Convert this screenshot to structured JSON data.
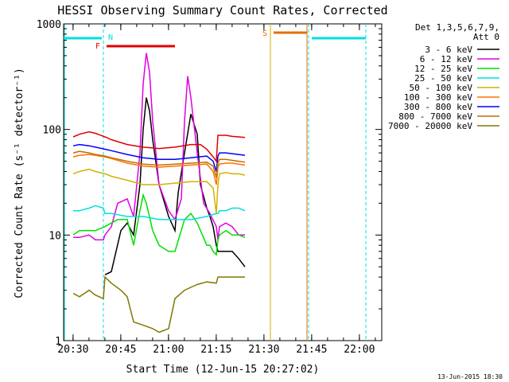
{
  "chart_data": {
    "type": "line",
    "title": "HESSI Observing Summary Count Rates, Corrected",
    "xlabel": "Start Time (12-Jun-15 20:27:02)",
    "ylabel": "Corrected Count Rate (s⁻¹ detector⁻¹)",
    "y_scale": "log",
    "ylim": [
      1,
      1000
    ],
    "xlim_minutes_since_start": [
      0,
      100
    ],
    "x_tick_labels": [
      "20:30",
      "20:45",
      "21:00",
      "21:15",
      "21:30",
      "21:45",
      "22:00"
    ],
    "x_tick_minutes": [
      2.97,
      17.97,
      32.97,
      47.97,
      62.97,
      77.97,
      92.97
    ],
    "y_tick_labels": [
      "1",
      "10",
      "100",
      "1000"
    ],
    "y_tick_values": [
      1,
      10,
      100,
      1000
    ],
    "legend_header": [
      "Det 1,3,5,6,7,9,",
      "Att 0"
    ],
    "legend_position": "right",
    "footer_date": "13-Jun-2015 18:30",
    "series": [
      {
        "name": "3 - 6 keV",
        "color": "#000000",
        "x": [
          0,
          5,
          10,
          12.5,
          13,
          15,
          18,
          20,
          22,
          24,
          25,
          26,
          27,
          28,
          30,
          33,
          35,
          36,
          38,
          40,
          42,
          43,
          45,
          46,
          47,
          48,
          48.5,
          49,
          51,
          53,
          55,
          57
        ],
        "y": [
          null,
          null,
          null,
          null,
          4.2,
          4.5,
          11,
          13,
          10,
          30,
          100,
          200,
          150,
          80,
          30,
          15,
          11,
          25,
          60,
          140,
          90,
          30,
          18,
          15,
          12,
          8,
          7,
          7,
          7,
          7,
          6,
          5
        ]
      },
      {
        "name": "6 - 12 keV",
        "color": "#e000e0",
        "x": [
          0,
          3,
          5,
          8,
          10,
          12.5,
          13,
          15,
          17,
          20,
          22,
          24,
          25,
          26,
          27,
          28,
          30,
          33,
          35,
          37,
          38,
          39,
          40,
          42,
          44,
          46,
          48,
          48.5,
          49,
          51,
          53,
          55,
          57
        ],
        "y": [
          null,
          9.5,
          9.5,
          10,
          9,
          9,
          10,
          12,
          20,
          22,
          15,
          60,
          270,
          530,
          350,
          120,
          30,
          17,
          14,
          22,
          120,
          320,
          200,
          60,
          20,
          16,
          12,
          9,
          12,
          13,
          12,
          10,
          10
        ]
      },
      {
        "name": "12 - 25 keV",
        "color": "#00e000",
        "x": [
          0,
          3,
          5,
          8,
          10,
          13,
          15,
          17,
          20,
          22,
          24,
          25,
          26,
          28,
          30,
          33,
          35,
          38,
          40,
          42,
          45,
          46,
          47,
          48,
          48.5,
          49,
          51,
          53,
          55,
          57
        ],
        "y": [
          null,
          10,
          11,
          11,
          11,
          12,
          13,
          14,
          14,
          8,
          17,
          24,
          20,
          11,
          8,
          7,
          7,
          14,
          16,
          13,
          8,
          8,
          7,
          6.5,
          9,
          10,
          11,
          10,
          10,
          9.5
        ]
      },
      {
        "name": "25 - 50 keV",
        "color": "#00e0e0",
        "x": [
          0,
          3,
          5,
          8,
          10,
          12.5,
          13,
          15,
          20,
          25,
          30,
          35,
          40,
          45,
          48,
          48.5,
          49,
          51,
          53,
          55,
          57
        ],
        "y": [
          null,
          17,
          17,
          18,
          19,
          18,
          16,
          16,
          15,
          15,
          14,
          14,
          14,
          15,
          16,
          16,
          17,
          17,
          18,
          18,
          17
        ]
      },
      {
        "name": "50 - 100 keV",
        "color": "#d4b000",
        "x": [
          0,
          3,
          5,
          8,
          10,
          13,
          15,
          20,
          25,
          30,
          35,
          40,
          45,
          47,
          48,
          48.5,
          49,
          51,
          53,
          55,
          57
        ],
        "y": [
          null,
          38,
          40,
          42,
          40,
          38,
          36,
          33,
          30,
          30,
          31,
          32,
          32,
          28,
          16,
          30,
          38,
          39,
          38,
          38,
          37
        ]
      },
      {
        "name": "100 - 300 keV",
        "color": "#ff7000",
        "x": [
          0,
          3,
          5,
          8,
          10,
          13,
          15,
          20,
          25,
          30,
          35,
          40,
          45,
          47,
          48,
          48.5,
          49,
          51,
          53,
          55,
          57
        ],
        "y": [
          null,
          55,
          57,
          58,
          57,
          55,
          53,
          48,
          45,
          44,
          45,
          46,
          47,
          40,
          30,
          44,
          47,
          48,
          48,
          47,
          46
        ]
      },
      {
        "name": "300 - 800 keV",
        "color": "#0000ff",
        "x": [
          0,
          3,
          5,
          8,
          10,
          13,
          15,
          20,
          25,
          30,
          35,
          40,
          45,
          47,
          48,
          48.5,
          49,
          51,
          53,
          55,
          57
        ],
        "y": [
          null,
          70,
          72,
          70,
          68,
          65,
          63,
          58,
          54,
          52,
          52,
          54,
          56,
          50,
          40,
          56,
          60,
          60,
          59,
          58,
          57
        ]
      },
      {
        "name": "800 - 7000 keV",
        "color": "#c07000",
        "x": [
          0,
          3,
          5,
          8,
          10,
          13,
          15,
          20,
          25,
          30,
          35,
          40,
          45,
          47,
          48,
          48.5,
          49,
          51,
          53,
          55,
          57
        ],
        "y": [
          null,
          60,
          62,
          60,
          58,
          56,
          54,
          50,
          47,
          46,
          47,
          48,
          49,
          45,
          35,
          48,
          52,
          52,
          51,
          50,
          49
        ]
      },
      {
        "name": "7000 - 20000 keV",
        "color": "#807800",
        "x": [
          0,
          3,
          5,
          8,
          10,
          12.5,
          13,
          15,
          18,
          20,
          22,
          25,
          28,
          30,
          33,
          35,
          38,
          40,
          42,
          45,
          48,
          48.5,
          49,
          51,
          53,
          55,
          57
        ],
        "y": [
          null,
          2.8,
          2.6,
          3,
          2.7,
          2.5,
          4,
          3.5,
          3,
          2.6,
          1.5,
          1.4,
          1.3,
          1.2,
          1.3,
          2.5,
          3,
          3.2,
          3.4,
          3.6,
          3.5,
          4,
          4,
          4,
          4,
          4,
          4
        ]
      }
    ],
    "red_line_extra": {
      "x": [
        0,
        3,
        5,
        8,
        10,
        13,
        15,
        20,
        25,
        30,
        35,
        40,
        43,
        45,
        47,
        48,
        48.5,
        49,
        51,
        53,
        55,
        57
      ],
      "y": [
        null,
        85,
        90,
        95,
        92,
        85,
        80,
        72,
        68,
        66,
        68,
        72,
        72,
        65,
        55,
        50,
        88,
        88,
        88,
        86,
        85,
        84
      ]
    },
    "flags": [
      {
        "label": "N",
        "color": "#00e0e0"
      },
      {
        "label": "F",
        "color": "#e00000"
      },
      {
        "label": "S",
        "color": "#e07000"
      }
    ]
  }
}
